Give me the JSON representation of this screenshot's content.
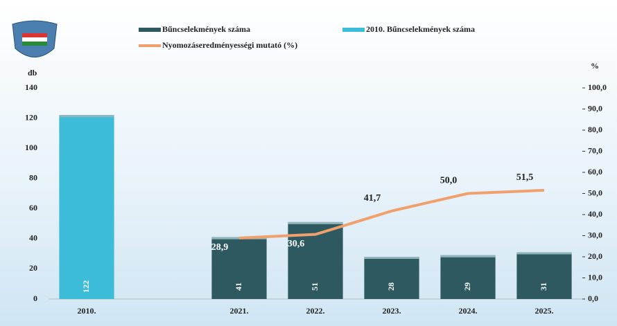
{
  "chart_data": {
    "type": "bar-line",
    "y_label": "db",
    "y2_label": "%",
    "categories": [
      "2010.",
      null,
      "2021.",
      "2022.",
      "2023.",
      "2024.",
      "2025."
    ],
    "series": [
      {
        "name": "Bűncselekmények száma",
        "type": "bar",
        "color": "#2e5961",
        "values": [
          null,
          null,
          41,
          51,
          28,
          29,
          31
        ]
      },
      {
        "name": "2010. Bűncselekmények száma",
        "type": "bar",
        "color": "#3cbcd8",
        "values": [
          122,
          null,
          null,
          null,
          null,
          null,
          null
        ]
      },
      {
        "name": "Nyomozáseredményességi mutató (%)",
        "type": "line",
        "axis": "y2",
        "color": "#f0a06c",
        "values": [
          null,
          null,
          28.9,
          30.6,
          41.7,
          50.0,
          51.5
        ],
        "value_labels": [
          null,
          null,
          "28,9",
          "30,6",
          "41,7",
          "50,0",
          "51,5"
        ]
      }
    ],
    "ylim": [
      0,
      140
    ],
    "yticks": [
      0,
      20,
      40,
      60,
      80,
      100,
      120,
      140
    ],
    "y2lim": [
      0,
      100
    ],
    "y2ticks": [
      {
        "value": 0,
        "label": "0,0"
      },
      {
        "value": 10,
        "label": "10,0"
      },
      {
        "value": 20,
        "label": "20,0"
      },
      {
        "value": 30,
        "label": "30,0"
      },
      {
        "value": 40,
        "label": "40,0"
      },
      {
        "value": 50,
        "label": "50,0"
      },
      {
        "value": 60,
        "label": "60,0"
      },
      {
        "value": 70,
        "label": "70,0"
      },
      {
        "value": 80,
        "label": "80,0"
      },
      {
        "value": 90,
        "label": "90,0"
      },
      {
        "value": 100,
        "label": "100,0"
      }
    ]
  }
}
